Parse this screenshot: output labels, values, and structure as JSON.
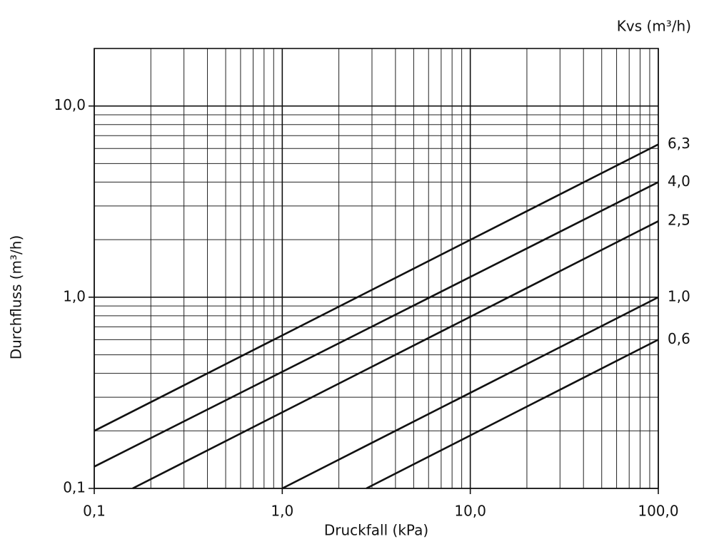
{
  "chart_data": {
    "type": "line",
    "legend_title": "Kvs (m³/h)",
    "x_label": "Druckfall (kPa)",
    "y_label": "Durchfluss  (m³/h)",
    "log_x": true,
    "log_y": true,
    "grid": true,
    "color": "#111111",
    "xlim": [
      0.1,
      100
    ],
    "ylim": [
      0.1,
      20
    ],
    "xticks": [
      {
        "value": 0.1,
        "label": "0,1"
      },
      {
        "value": 1,
        "label": "1,0"
      },
      {
        "value": 10,
        "label": "10,0"
      },
      {
        "value": 100,
        "label": "100,0"
      }
    ],
    "yticks": [
      {
        "value": 0.1,
        "label": "0,1"
      },
      {
        "value": 1,
        "label": "1,0"
      },
      {
        "value": 10,
        "label": "10,0"
      }
    ],
    "xminor": [
      0.2,
      0.3,
      0.4,
      0.5,
      0.6,
      0.7,
      0.8,
      0.9,
      2,
      3,
      4,
      5,
      6,
      7,
      8,
      9,
      20,
      30,
      40,
      50,
      60,
      70,
      80,
      90
    ],
    "yminor": [
      0.2,
      0.3,
      0.4,
      0.5,
      0.6,
      0.7,
      0.8,
      0.9,
      2,
      3,
      4,
      5,
      6,
      7,
      8,
      9
    ],
    "series": [
      {
        "name": "6,3",
        "x": [
          0.1,
          100
        ],
        "values": [
          0.2,
          6.3
        ]
      },
      {
        "name": "4,0",
        "x": [
          0.1,
          100
        ],
        "values": [
          0.13,
          4.0
        ]
      },
      {
        "name": "2,5",
        "x": [
          0.16,
          100
        ],
        "values": [
          0.1,
          2.5
        ]
      },
      {
        "name": "1,0",
        "x": [
          1,
          100
        ],
        "values": [
          0.1,
          1.0
        ]
      },
      {
        "name": "0,6",
        "x": [
          2.8,
          100
        ],
        "values": [
          0.1,
          0.6
        ]
      }
    ]
  }
}
